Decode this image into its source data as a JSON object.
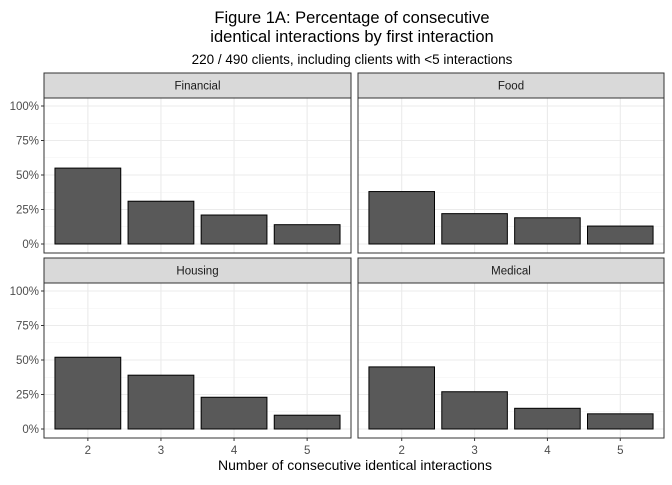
{
  "chart_data": {
    "type": "bar",
    "title_line1": "Figure 1A: Percentage of consecutive",
    "title_line2": "identical interactions by first interaction",
    "subtitle": "220 / 490 clients, including clients with <5 interactions",
    "xlabel": "Number of consecutive identical interactions",
    "ylabel": "",
    "categories": [
      "2",
      "3",
      "4",
      "5"
    ],
    "y_ticks": [
      "0%",
      "25%",
      "50%",
      "75%",
      "100%"
    ],
    "ylim": [
      0,
      1.0
    ],
    "grid": true,
    "bar_color": "#595959",
    "facets": [
      {
        "name": "Financial",
        "values": [
          0.55,
          0.31,
          0.21,
          0.14
        ]
      },
      {
        "name": "Food",
        "values": [
          0.38,
          0.22,
          0.19,
          0.13
        ]
      },
      {
        "name": "Housing",
        "values": [
          0.52,
          0.39,
          0.23,
          0.1
        ]
      },
      {
        "name": "Medical",
        "values": [
          0.45,
          0.27,
          0.15,
          0.11
        ]
      }
    ]
  }
}
